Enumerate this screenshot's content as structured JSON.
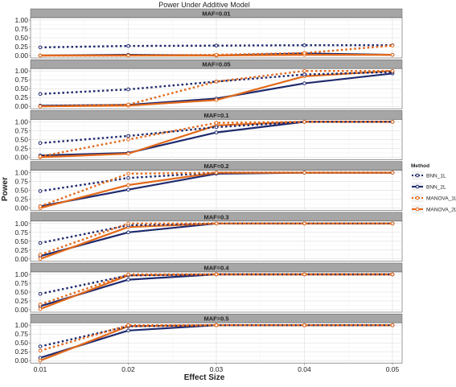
{
  "chart_data": {
    "type": "line",
    "title": "Power Under Additive Model",
    "xlabel": "Effect Size",
    "ylabel": "Power",
    "x": [
      0.01,
      0.02,
      0.03,
      0.04,
      0.05
    ],
    "x_tick_labels": [
      "0.01",
      "0.02",
      "0.03",
      "0.04",
      "0.05"
    ],
    "ylim": [
      0,
      1
    ],
    "y_tick_labels": [
      "0.00",
      "0.25",
      "0.50",
      "0.75",
      "1.00"
    ],
    "grid": true,
    "legend": {
      "title": "Method",
      "placement": "right",
      "entries": [
        {
          "name": "BNN_1L",
          "color": "#1f2a6e",
          "dashed": true
        },
        {
          "name": "BNN_2L",
          "color": "#1f2a6e",
          "dashed": false
        },
        {
          "name": "MANOVA_1L",
          "color": "#e3691a",
          "dashed": true
        },
        {
          "name": "MANOVA_2L",
          "color": "#e3691a",
          "dashed": false
        }
      ]
    },
    "panels": [
      {
        "label": "MAF=0.01",
        "series": [
          {
            "name": "BNN_1L",
            "values": [
              0.23,
              0.27,
              0.28,
              0.29,
              0.29
            ]
          },
          {
            "name": "BNN_2L",
            "values": [
              0.0,
              0.02,
              0.0,
              0.06,
              0.02
            ]
          },
          {
            "name": "MANOVA_1L",
            "values": [
              0.0,
              0.0,
              0.02,
              0.07,
              0.28
            ]
          },
          {
            "name": "MANOVA_2L",
            "values": [
              0.0,
              0.0,
              0.0,
              0.02,
              0.02
            ]
          }
        ]
      },
      {
        "label": "MAF=0.05",
        "series": [
          {
            "name": "BNN_1L",
            "values": [
              0.35,
              0.48,
              0.7,
              0.9,
              0.97
            ]
          },
          {
            "name": "BNN_2L",
            "values": [
              0.02,
              0.04,
              0.22,
              0.65,
              0.93
            ]
          },
          {
            "name": "MANOVA_1L",
            "values": [
              0.0,
              0.05,
              0.7,
              1.0,
              1.0
            ]
          },
          {
            "name": "MANOVA_2L",
            "values": [
              0.0,
              0.02,
              0.18,
              0.85,
              1.0
            ]
          }
        ]
      },
      {
        "label": "MAF=0.1",
        "series": [
          {
            "name": "BNN_1L",
            "values": [
              0.4,
              0.6,
              0.85,
              1.0,
              1.0
            ]
          },
          {
            "name": "BNN_2L",
            "values": [
              0.05,
              0.12,
              0.7,
              1.0,
              1.0
            ]
          },
          {
            "name": "MANOVA_1L",
            "values": [
              0.02,
              0.5,
              0.97,
              1.0,
              1.0
            ]
          },
          {
            "name": "MANOVA_2L",
            "values": [
              0.0,
              0.1,
              0.9,
              1.0,
              1.0
            ]
          }
        ]
      },
      {
        "label": "MAF=0.2",
        "series": [
          {
            "name": "BNN_1L",
            "values": [
              0.48,
              0.85,
              1.0,
              1.0,
              1.0
            ]
          },
          {
            "name": "BNN_2L",
            "values": [
              0.05,
              0.52,
              0.97,
              1.0,
              1.0
            ]
          },
          {
            "name": "MANOVA_1L",
            "values": [
              0.05,
              0.97,
              1.0,
              1.0,
              1.0
            ]
          },
          {
            "name": "MANOVA_2L",
            "values": [
              0.0,
              0.65,
              1.0,
              1.0,
              1.0
            ]
          }
        ]
      },
      {
        "label": "MAF=0.3",
        "series": [
          {
            "name": "BNN_1L",
            "values": [
              0.45,
              0.95,
              1.0,
              1.0,
              1.0
            ]
          },
          {
            "name": "BNN_2L",
            "values": [
              0.08,
              0.75,
              1.0,
              1.0,
              1.0
            ]
          },
          {
            "name": "MANOVA_1L",
            "values": [
              0.12,
              1.0,
              1.0,
              1.0,
              1.0
            ]
          },
          {
            "name": "MANOVA_2L",
            "values": [
              0.0,
              0.9,
              1.0,
              1.0,
              1.0
            ]
          }
        ]
      },
      {
        "label": "MAF=0.4",
        "series": [
          {
            "name": "BNN_1L",
            "values": [
              0.45,
              0.97,
              1.0,
              1.0,
              1.0
            ]
          },
          {
            "name": "BNN_2L",
            "values": [
              0.1,
              0.85,
              1.0,
              1.0,
              1.0
            ]
          },
          {
            "name": "MANOVA_1L",
            "values": [
              0.15,
              1.0,
              1.0,
              1.0,
              1.0
            ]
          },
          {
            "name": "MANOVA_2L",
            "values": [
              0.02,
              0.97,
              1.0,
              1.0,
              1.0
            ]
          }
        ]
      },
      {
        "label": "MAF=0.5",
        "series": [
          {
            "name": "BNN_1L",
            "values": [
              0.4,
              0.97,
              1.0,
              1.0,
              1.0
            ]
          },
          {
            "name": "BNN_2L",
            "values": [
              0.08,
              0.85,
              1.0,
              1.0,
              1.0
            ]
          },
          {
            "name": "MANOVA_1L",
            "values": [
              0.28,
              1.0,
              1.0,
              1.0,
              1.0
            ]
          },
          {
            "name": "MANOVA_2L",
            "values": [
              0.0,
              0.97,
              1.0,
              1.0,
              1.0
            ]
          }
        ]
      }
    ]
  }
}
